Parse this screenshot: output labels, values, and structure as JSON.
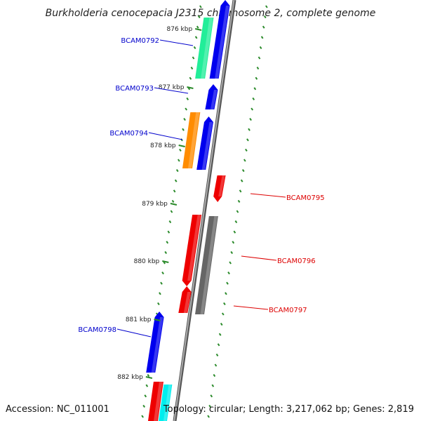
{
  "title": "Burkholderia cenocepacia J2315 chromosome 2, complete genome",
  "footer": {
    "accession": "Accession: NC_011001",
    "topology": "Topology: circular; Length: 3,217,062 bp; Genes: 2,819"
  },
  "colors": {
    "backbone": "#7a7a7a",
    "forward_label": "#0000cc",
    "reverse_label": "#dd0000",
    "blue": "#0000ee",
    "red": "#ee0000",
    "green": "#22ee99",
    "orange": "#ff8c00",
    "gray": "#666666",
    "cyan": "#00eeee",
    "tick": "#2a8a2a"
  },
  "kbp_ticks": [
    "876 kbp",
    "877 kbp",
    "878 kbp",
    "879 kbp",
    "880 kbp",
    "881 kbp",
    "882 kbp"
  ],
  "gene_labels": [
    {
      "text": "BCAM0792",
      "strand": "forward"
    },
    {
      "text": "BCAM0793",
      "strand": "forward"
    },
    {
      "text": "BCAM0794",
      "strand": "forward"
    },
    {
      "text": "BCAM0795",
      "strand": "reverse"
    },
    {
      "text": "BCAM0796",
      "strand": "reverse"
    },
    {
      "text": "BCAM0797",
      "strand": "reverse"
    },
    {
      "text": "BCAM0798",
      "strand": "forward"
    }
  ]
}
